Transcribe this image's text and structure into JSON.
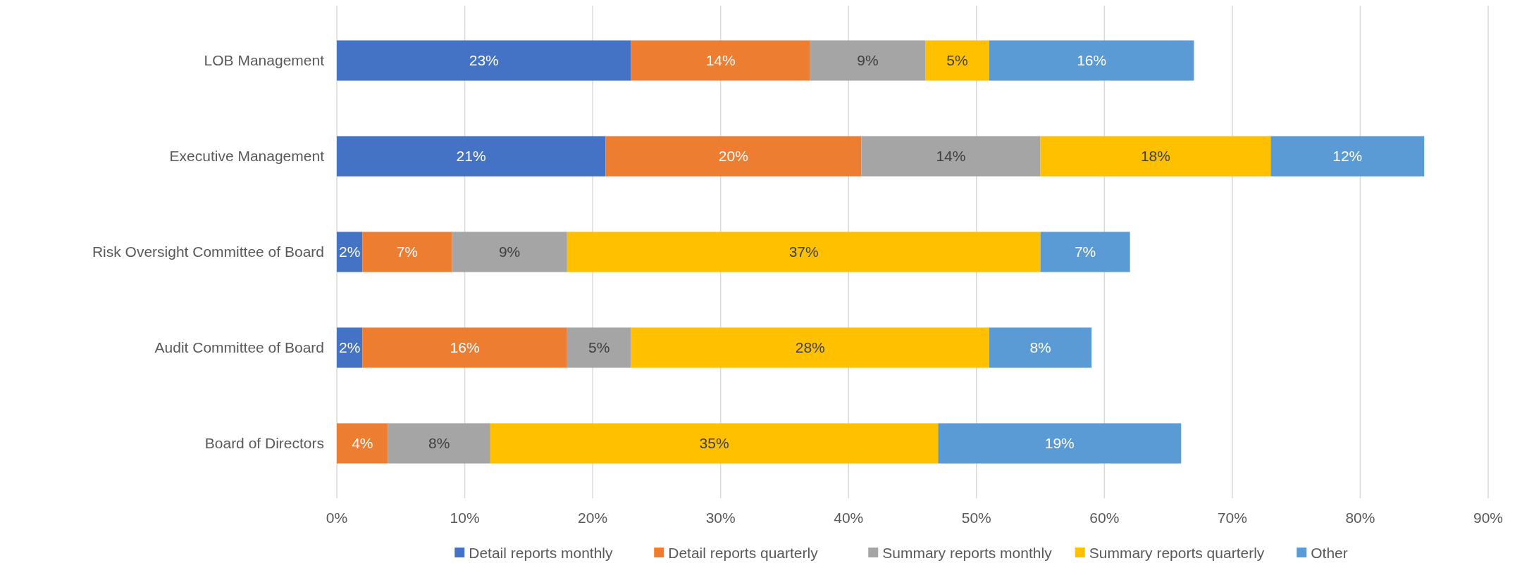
{
  "chart_data": {
    "type": "bar",
    "orientation": "horizontal",
    "stacked": true,
    "categories": [
      "LOB Management",
      "Executive Management",
      "Risk Oversight Committee of Board",
      "Audit Committee of Board",
      "Board of Directors"
    ],
    "series": [
      {
        "name": "Detail reports monthly",
        "color": "#4472c4",
        "values": [
          23,
          21,
          2,
          2,
          null
        ],
        "value_labels": [
          "23%",
          "21%",
          "2%",
          "2%",
          null
        ]
      },
      {
        "name": "Detail reports quarterly",
        "color": "#ed7d31",
        "values": [
          14,
          20,
          7,
          16,
          4
        ],
        "value_labels": [
          "14%",
          "20%",
          "7%",
          "16%",
          "4%"
        ]
      },
      {
        "name": "Summary reports monthly",
        "color": "#a5a5a5",
        "values": [
          9,
          14,
          9,
          5,
          8
        ],
        "value_labels": [
          "9%",
          "14%",
          "9%",
          "5%",
          "8%"
        ]
      },
      {
        "name": "Summary reports quarterly",
        "color": "#ffc000",
        "values": [
          5,
          18,
          37,
          28,
          35
        ],
        "value_labels": [
          "5%",
          "18%",
          "37%",
          "28%",
          "35%"
        ]
      },
      {
        "name": "Other",
        "color": "#5b9bd5",
        "values": [
          16,
          12,
          7,
          8,
          19
        ],
        "value_labels": [
          "16%",
          "12%",
          "7%",
          "8%",
          "19%"
        ]
      }
    ],
    "xlim": [
      0,
      90
    ],
    "xticks": [
      {
        "value": 0,
        "label": "0%"
      },
      {
        "value": 10,
        "label": "10%"
      },
      {
        "value": 20,
        "label": "20%"
      },
      {
        "value": 30,
        "label": "30%"
      },
      {
        "value": 40,
        "label": "40%"
      },
      {
        "value": 50,
        "label": "50%"
      },
      {
        "value": 60,
        "label": "60%"
      },
      {
        "value": 70,
        "label": "70%"
      },
      {
        "value": 80,
        "label": "80%"
      },
      {
        "value": 90,
        "label": "90%"
      }
    ],
    "grid": "x",
    "legend": "bottom"
  }
}
